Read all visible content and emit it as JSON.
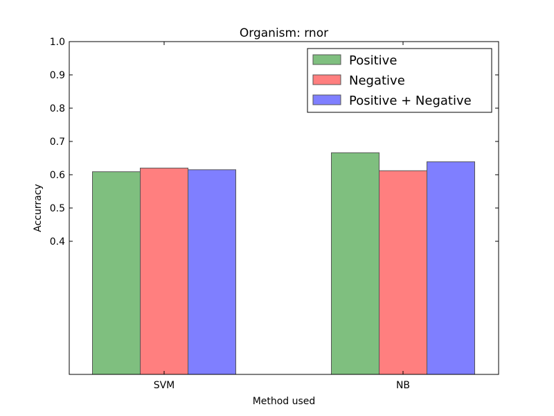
{
  "chart_data": {
    "type": "bar",
    "title": "Organism: rnor",
    "xlabel": "Method used",
    "ylabel": "Accurracy",
    "categories": [
      "SVM",
      "NB"
    ],
    "series": [
      {
        "name": "Positive",
        "values": [
          0.609,
          0.666
        ],
        "color": "#7fbf7f"
      },
      {
        "name": "Negative",
        "values": [
          0.62,
          0.612
        ],
        "color": "#ff7f7f"
      },
      {
        "name": "Positive + Negative",
        "values": [
          0.615,
          0.639
        ],
        "color": "#7f7fff"
      }
    ],
    "ylim": [
      0.0,
      1.0
    ],
    "yticks": [
      "0.4",
      "0.5",
      "0.6",
      "0.7",
      "0.8",
      "0.9",
      "1.0"
    ],
    "grid": false,
    "legend_position": "top-right"
  }
}
